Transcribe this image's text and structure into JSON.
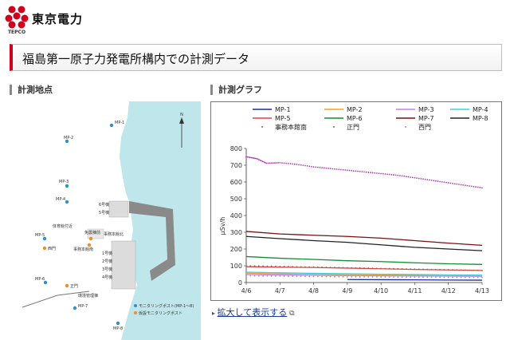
{
  "header": {
    "logo_text": "TEPCO",
    "brand": "東京電力"
  },
  "page_title": "福島第一原子力発電所構内での計測データ",
  "map_section": {
    "title": "計測地点",
    "labels": {
      "mp1": "MP-1",
      "mp2": "MP-2",
      "mp3": "MP-3",
      "mp4": "MP-4",
      "mp5": "MP-5",
      "mp6": "MP-6",
      "mp7": "MP-7",
      "mp8": "MP-8",
      "unit6": "6号機",
      "unit5": "5号機",
      "gym": "体育館付近",
      "seismic": "免震棟前",
      "office": "事務本館北",
      "office_s": "事務本館南",
      "unit1": "1号機",
      "unit2": "2号機",
      "unit3": "3号機",
      "unit4": "4号機",
      "west_gate": "西門",
      "main_gate": "正門",
      "env_bldg": "環境管理棟",
      "north": "N"
    },
    "legend": {
      "monitoring_post": "モニタリングポスト(MP-1〜8)",
      "temp_post": "仮設モニタリングポスト"
    },
    "colors": {
      "sea": "#bfe6ea",
      "land": "#ffffff",
      "mp_dot": "#2f8fc9",
      "temp_dot": "#ef8a2e"
    }
  },
  "chart_section": {
    "title": "計測グラフ",
    "enlarge_link": "拡大して表示する",
    "chart_data": {
      "type": "line",
      "title": "",
      "xlabel": "",
      "ylabel": "μSv/h",
      "ylim": [
        0,
        800
      ],
      "yticks": [
        0,
        100,
        200,
        300,
        400,
        500,
        600,
        700,
        800
      ],
      "xlim": [
        4.6,
        4.13
      ],
      "xticks": [
        "4/6",
        "4/7",
        "4/8",
        "4/9",
        "4/10",
        "4/11",
        "4/12",
        "4/13"
      ],
      "legend_position": "top",
      "series": [
        {
          "name": "MP-1",
          "color": "#1a2a9c",
          "style": "line",
          "x": [
            3.0,
            4.0,
            5.0,
            6.0,
            7.0
          ],
          "y": [
            18,
            17,
            16,
            15,
            14
          ]
        },
        {
          "name": "MP-2",
          "color": "#f0a030",
          "style": "line",
          "x": [
            0,
            1,
            2,
            3,
            4,
            5,
            6,
            7
          ],
          "y": [
            56,
            52,
            50,
            48,
            46,
            45,
            44,
            43
          ]
        },
        {
          "name": "MP-3",
          "color": "#c080e0",
          "style": "line",
          "x": [
            0,
            1,
            2,
            3,
            4,
            5,
            6,
            7
          ],
          "y": [
            48,
            45,
            43,
            41,
            40,
            39,
            38,
            37
          ]
        },
        {
          "name": "MP-4",
          "color": "#40d0e0",
          "style": "line",
          "x": [
            0,
            1,
            2,
            3,
            4,
            5,
            6,
            7
          ],
          "y": [
            62,
            58,
            55,
            52,
            50,
            48,
            46,
            45
          ]
        },
        {
          "name": "MP-5",
          "color": "#e04040",
          "style": "line",
          "x": [
            0,
            1,
            2,
            3,
            4,
            5,
            6,
            7
          ],
          "y": [
            95,
            92,
            90,
            86,
            82,
            78,
            75,
            72
          ]
        },
        {
          "name": "MP-6",
          "color": "#109030",
          "style": "line",
          "x": [
            0,
            1,
            2,
            3,
            4,
            5,
            6,
            7
          ],
          "y": [
            155,
            145,
            138,
            130,
            125,
            118,
            112,
            108
          ]
        },
        {
          "name": "MP-7",
          "color": "#7a1010",
          "style": "line",
          "x": [
            0,
            1,
            2,
            3,
            4,
            5,
            6,
            7
          ],
          "y": [
            305,
            290,
            282,
            275,
            265,
            250,
            235,
            222
          ]
        },
        {
          "name": "MP-8",
          "color": "#222222",
          "style": "line",
          "x": [
            0,
            1,
            2,
            3,
            4,
            5,
            6,
            7
          ],
          "y": [
            275,
            262,
            250,
            240,
            225,
            210,
            200,
            190
          ]
        },
        {
          "name": "事務本館南",
          "color": "#b040b0",
          "style": "dots",
          "x": [
            0,
            0.3,
            0.6,
            1.0,
            1.5,
            2.0,
            2.5,
            3.0,
            3.5,
            4.0,
            4.5,
            5.0,
            5.5,
            6.0,
            6.5,
            7.0
          ],
          "y": [
            750,
            740,
            712,
            715,
            705,
            690,
            680,
            670,
            660,
            650,
            640,
            625,
            610,
            595,
            580,
            565
          ]
        },
        {
          "name": "正門",
          "color": "#8a6a40",
          "style": "dots",
          "x": [
            0,
            1,
            2,
            3,
            4,
            5,
            6,
            7
          ],
          "y": [
            100,
            96,
            92,
            88,
            84,
            80,
            76,
            72
          ]
        },
        {
          "name": "西門",
          "color": "#9a9a9a",
          "style": "dots",
          "x": [
            0,
            1,
            2,
            3,
            4,
            5,
            6,
            7
          ],
          "y": [
            40,
            38,
            36,
            34,
            33,
            32,
            31,
            30
          ]
        }
      ]
    }
  }
}
